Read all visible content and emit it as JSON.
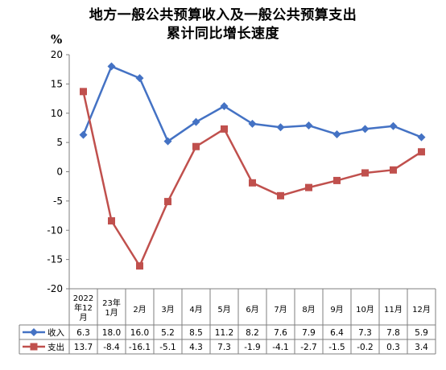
{
  "chart_data": {
    "type": "line",
    "title": "地方一般公共预算收入及一般公共预算支出",
    "subtitle": "累计同比增长速度",
    "ylabel": "%",
    "ylim": [
      -20,
      20
    ],
    "yticks": [
      "20",
      "15",
      "10",
      "5",
      "0",
      "-5",
      "-10",
      "-15",
      "-20"
    ],
    "categories": [
      [
        "2022",
        "年12",
        "月"
      ],
      [
        "23年",
        "1月"
      ],
      [
        "2月"
      ],
      [
        "3月"
      ],
      [
        "4月"
      ],
      [
        "5月"
      ],
      [
        "6月"
      ],
      [
        "7月"
      ],
      [
        "8月"
      ],
      [
        "9月"
      ],
      [
        "10月"
      ],
      [
        "11月"
      ],
      [
        "12月"
      ]
    ],
    "series": [
      {
        "name": "收入",
        "color": "#4472C4",
        "marker": "diamond",
        "values": [
          6.3,
          18.0,
          16.0,
          5.2,
          8.5,
          11.2,
          8.2,
          7.6,
          7.9,
          6.4,
          7.3,
          7.8,
          5.9
        ],
        "labels": [
          "6.3",
          "18.0",
          "16.0",
          "5.2",
          "8.5",
          "11.2",
          "8.2",
          "7.6",
          "7.9",
          "6.4",
          "7.3",
          "7.8",
          "5.9"
        ]
      },
      {
        "name": "支出",
        "color": "#C0504D",
        "marker": "square",
        "values": [
          13.7,
          -8.4,
          -16.1,
          -5.1,
          4.3,
          7.3,
          -1.9,
          -4.1,
          -2.7,
          -1.5,
          -0.2,
          0.3,
          3.4
        ],
        "labels": [
          "13.7",
          "-8.4",
          "-16.1",
          "-5.1",
          "4.3",
          "7.3",
          "-1.9",
          "-4.1",
          "-2.7",
          "-1.5",
          "-0.2",
          "0.3",
          "3.4"
        ]
      }
    ],
    "grid": false,
    "legend": "data-table-bottom"
  }
}
